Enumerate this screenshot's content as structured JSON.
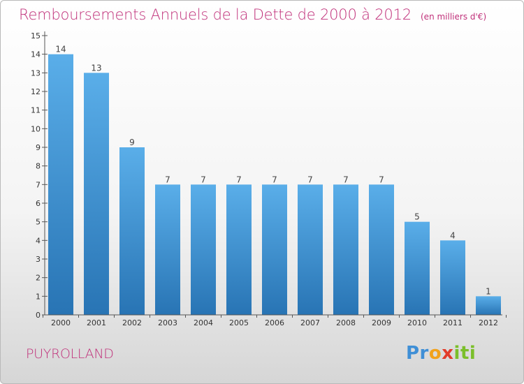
{
  "title": "Remboursements Annuels de la Dette de 2000 à 2012",
  "subtitle": "(en milliers d'€)",
  "commune": "PUYROLLAND",
  "logo": {
    "text": "Proxiti",
    "colors": [
      "#3f8fd6",
      "#f2a21c",
      "#e23b2a",
      "#7bbf2a"
    ]
  },
  "colors": {
    "title": "#c0307a",
    "bar_light": "#5aaee9",
    "bar_dark": "#2874b4",
    "axis": "#555555"
  },
  "chart_data": {
    "type": "bar",
    "title": "Remboursements Annuels de la Dette de 2000 à 2012",
    "subtitle": "(en milliers d'€)",
    "categories": [
      "2000",
      "2001",
      "2002",
      "2003",
      "2004",
      "2005",
      "2006",
      "2007",
      "2008",
      "2009",
      "2010",
      "2011",
      "2012"
    ],
    "values": [
      14,
      13,
      9,
      7,
      7,
      7,
      7,
      7,
      7,
      7,
      5,
      4,
      1
    ],
    "ylim": [
      0,
      15
    ],
    "yticks": [
      "0",
      "1",
      "2",
      "3",
      "4",
      "5",
      "6",
      "7",
      "8",
      "9",
      "10",
      "11",
      "12",
      "13",
      "14",
      "15"
    ],
    "xlabel": "",
    "ylabel": "",
    "grid": false,
    "data_labels": true
  }
}
